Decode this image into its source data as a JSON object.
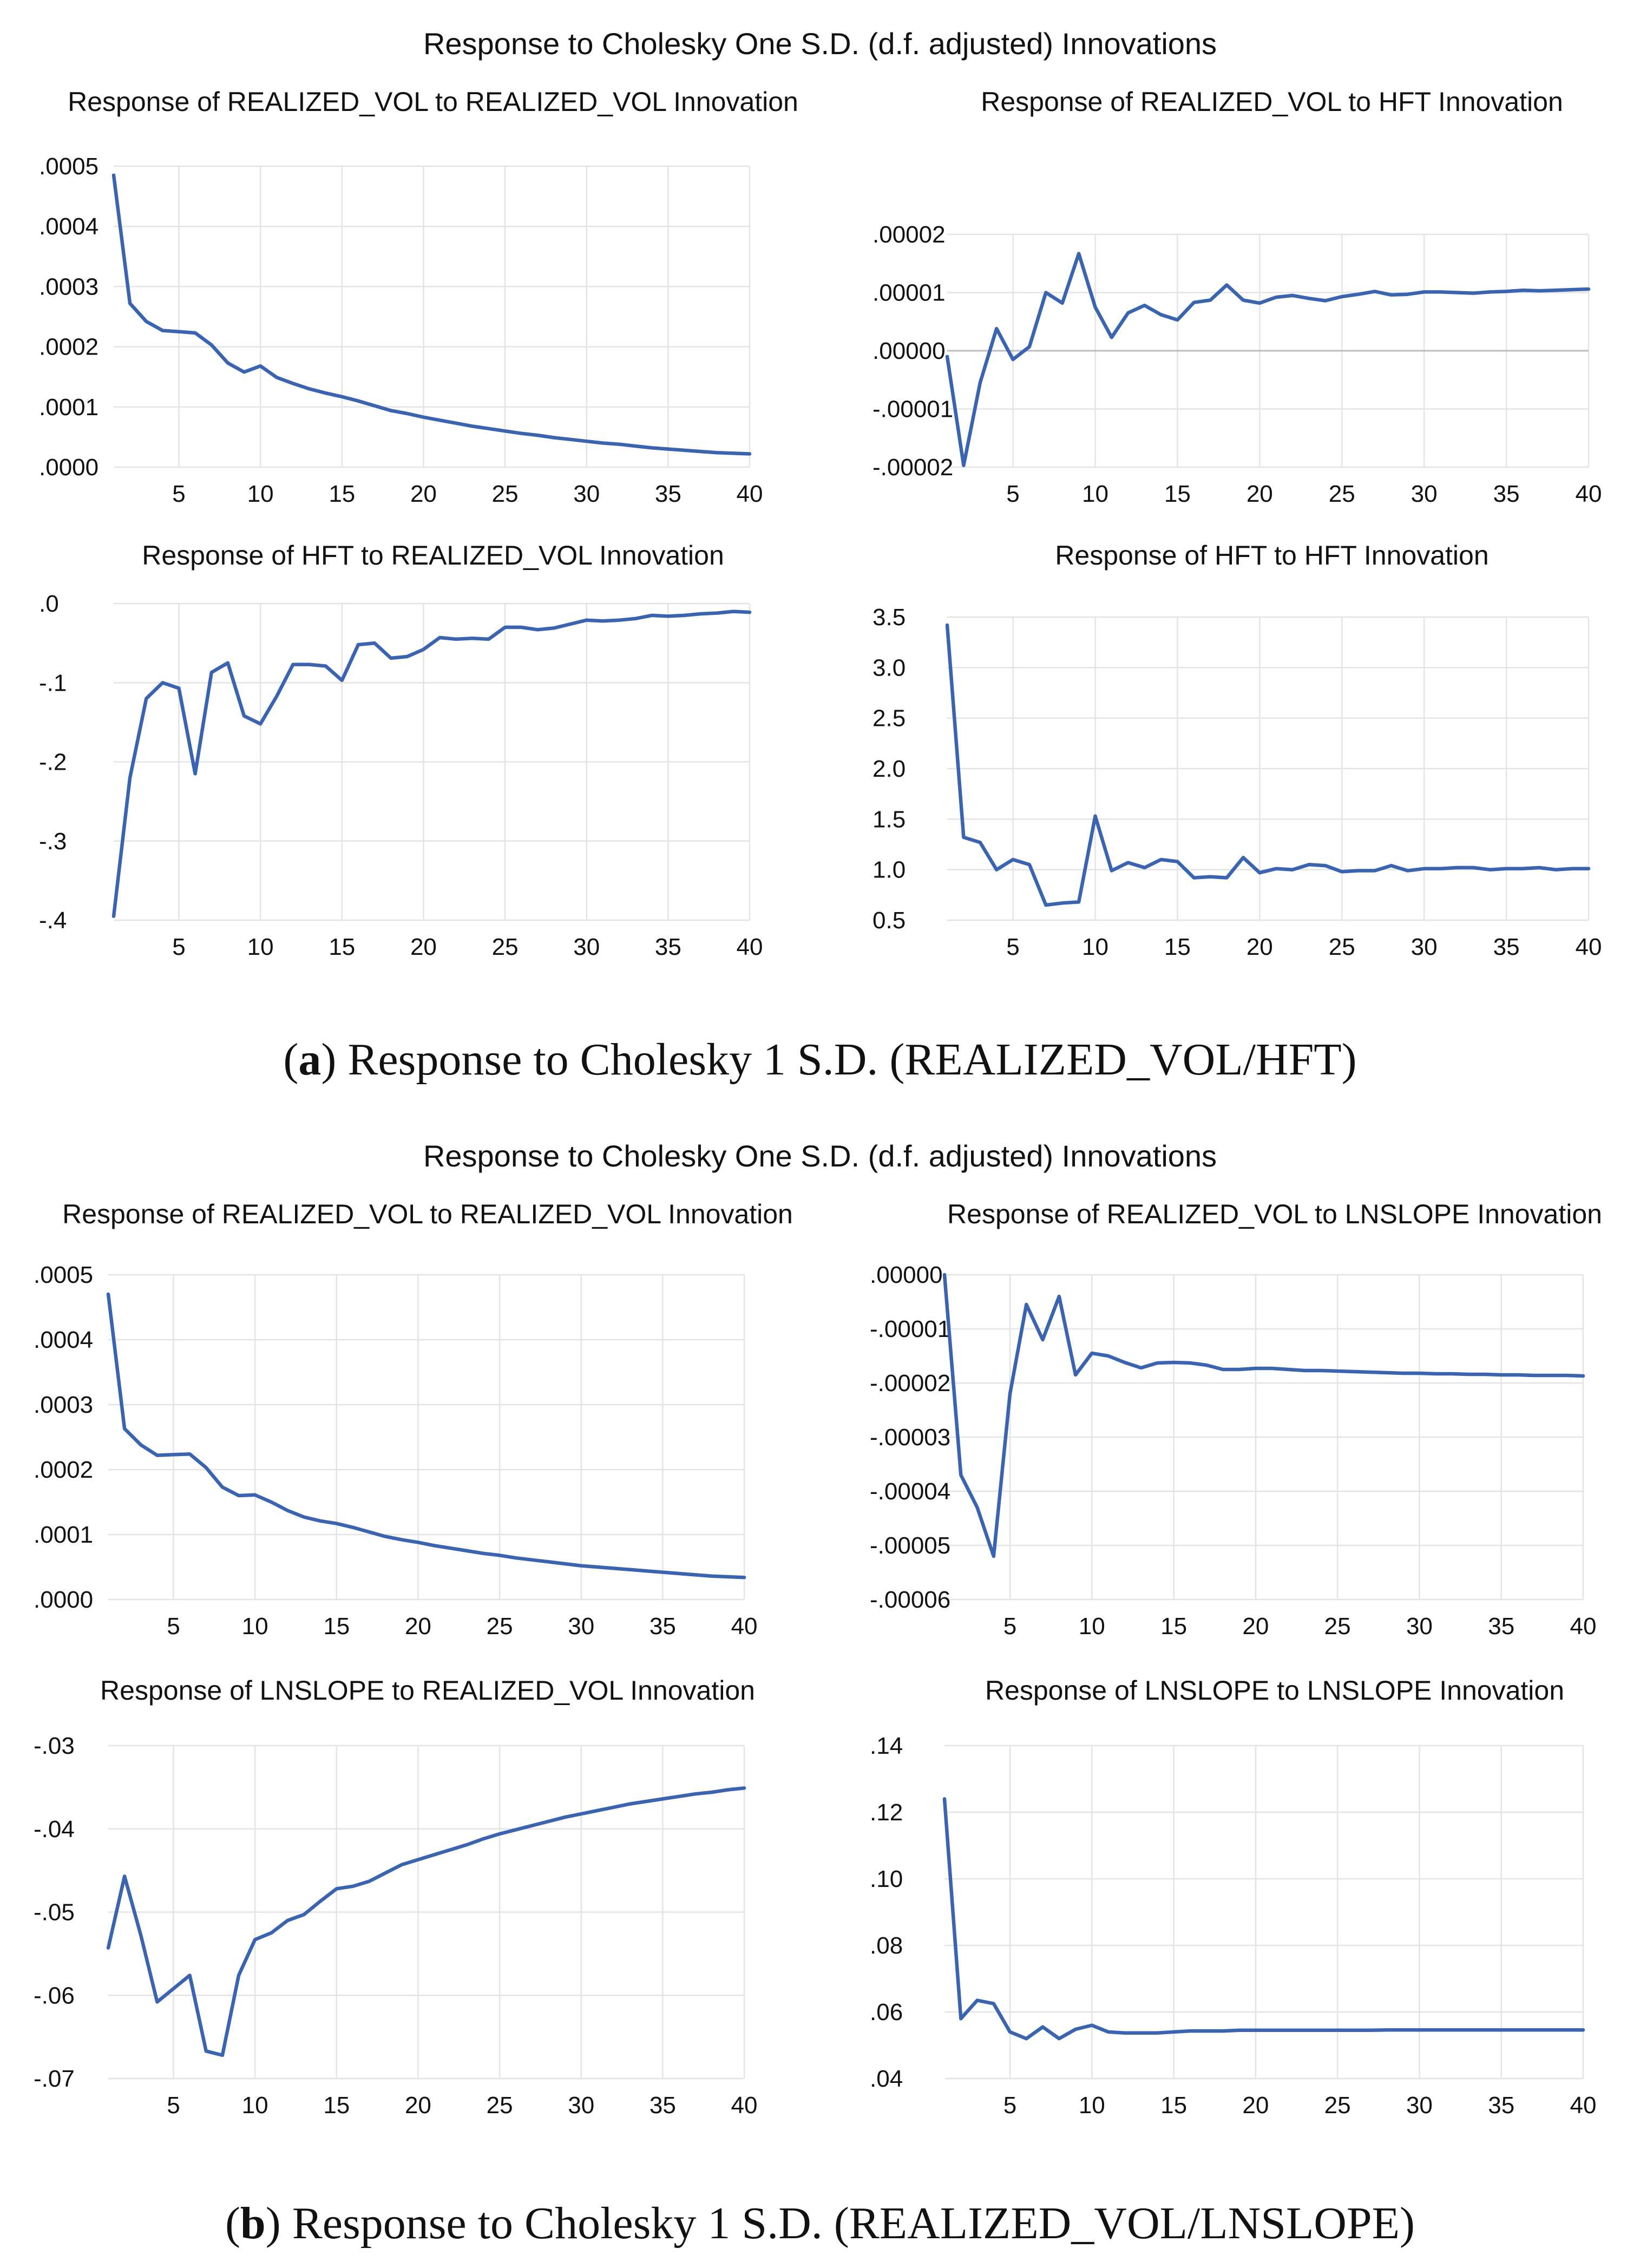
{
  "figure": {
    "series_color": "#3a63b0",
    "groups": [
      {
        "id": "a",
        "suptitle": "Response to Cholesky One S.D. (d.f. adjusted) Innovations",
        "caption_label": "a",
        "caption_text": "Response to Cholesky 1 S.D. (REALIZED_VOL/HFT)"
      },
      {
        "id": "b",
        "suptitle": "Response to Cholesky One S.D. (d.f. adjusted) Innovations",
        "caption_label": "b",
        "caption_text": "Response to Cholesky 1 S.D. (REALIZED_VOL/LNSLOPE)"
      }
    ]
  },
  "chart_data": [
    {
      "type": "line",
      "panel": "a1",
      "title": "Response of REALIZED_VOL to REALIZED_VOL Innovation",
      "x": [
        1,
        2,
        3,
        4,
        5,
        6,
        7,
        8,
        9,
        10,
        11,
        12,
        13,
        14,
        15,
        16,
        17,
        18,
        19,
        20,
        21,
        22,
        23,
        24,
        25,
        26,
        27,
        28,
        29,
        30,
        31,
        32,
        33,
        34,
        35,
        36,
        37,
        38,
        39,
        40
      ],
      "values": [
        0.000485,
        0.000272,
        0.000242,
        0.000227,
        0.000225,
        0.000223,
        0.000203,
        0.000173,
        0.000158,
        0.000168,
        0.000149,
        0.000139,
        0.00013,
        0.000123,
        0.000117,
        0.00011,
        0.000102,
        9.4e-05,
        8.9e-05,
        8.3e-05,
        7.8e-05,
        7.3e-05,
        6.8e-05,
        6.4e-05,
        6e-05,
        5.6e-05,
        5.3e-05,
        4.9e-05,
        4.6e-05,
        4.3e-05,
        4e-05,
        3.8e-05,
        3.5e-05,
        3.2e-05,
        3e-05,
        2.8e-05,
        2.6e-05,
        2.4e-05,
        2.3e-05,
        2.2e-05
      ],
      "xlim": [
        1,
        40
      ],
      "ylim": [
        0,
        0.0005
      ],
      "xticks": [
        5,
        10,
        15,
        20,
        25,
        30,
        35,
        40
      ],
      "xtick_labels": [
        "5",
        "10",
        "15",
        "20",
        "25",
        "30",
        "35",
        "40"
      ],
      "yticks": [
        0,
        0.0001,
        0.0002,
        0.0003,
        0.0004,
        0.0005
      ],
      "ytick_labels": [
        ".0000",
        ".0001",
        ".0002",
        ".0003",
        ".0004",
        ".0005"
      ],
      "zero_line": false,
      "grid": true
    },
    {
      "type": "line",
      "panel": "a2",
      "title": "Response of REALIZED_VOL to HFT Innovation",
      "x": [
        1,
        2,
        3,
        4,
        5,
        6,
        7,
        8,
        9,
        10,
        11,
        12,
        13,
        14,
        15,
        16,
        17,
        18,
        19,
        20,
        21,
        22,
        23,
        24,
        25,
        26,
        27,
        28,
        29,
        30,
        31,
        32,
        33,
        34,
        35,
        36,
        37,
        38,
        39,
        40
      ],
      "values": [
        -1e-06,
        -1.97e-05,
        -5.5e-06,
        3.8e-06,
        -1.5e-06,
        7e-07,
        1e-05,
        8.2e-06,
        1.67e-05,
        7.5e-06,
        2.3e-06,
        6.5e-06,
        7.8e-06,
        6.2e-06,
        5.3e-06,
        8.3e-06,
        8.7e-06,
        1.13e-05,
        8.7e-06,
        8.2e-06,
        9.2e-06,
        9.5e-06,
        9e-06,
        8.6e-06,
        9.3e-06,
        9.7e-06,
        1.02e-05,
        9.6e-06,
        9.7e-06,
        1.01e-05,
        1.01e-05,
        1e-05,
        9.9e-06,
        1.01e-05,
        1.02e-05,
        1.04e-05,
        1.03e-05,
        1.04e-05,
        1.05e-05,
        1.06e-05
      ],
      "xlim": [
        1,
        40
      ],
      "ylim": [
        -2e-05,
        2e-05
      ],
      "xticks": [
        5,
        10,
        15,
        20,
        25,
        30,
        35,
        40
      ],
      "xtick_labels": [
        "5",
        "10",
        "15",
        "20",
        "25",
        "30",
        "35",
        "40"
      ],
      "yticks": [
        -2e-05,
        -1e-05,
        0,
        1e-05,
        2e-05
      ],
      "ytick_labels": [
        "-.00002",
        "-.00001",
        ".00000",
        ".00001",
        ".00002"
      ],
      "zero_line": true,
      "grid": true
    },
    {
      "type": "line",
      "panel": "a3",
      "title": "Response of HFT to REALIZED_VOL Innovation",
      "x": [
        1,
        2,
        3,
        4,
        5,
        6,
        7,
        8,
        9,
        10,
        11,
        12,
        13,
        14,
        15,
        16,
        17,
        18,
        19,
        20,
        21,
        22,
        23,
        24,
        25,
        26,
        27,
        28,
        29,
        30,
        31,
        32,
        33,
        34,
        35,
        36,
        37,
        38,
        39,
        40
      ],
      "values": [
        -0.395,
        -0.22,
        -0.12,
        -0.1,
        -0.107,
        -0.215,
        -0.087,
        -0.075,
        -0.142,
        -0.152,
        -0.117,
        -0.077,
        -0.077,
        -0.079,
        -0.097,
        -0.052,
        -0.05,
        -0.069,
        -0.067,
        -0.058,
        -0.043,
        -0.045,
        -0.044,
        -0.045,
        -0.03,
        -0.03,
        -0.033,
        -0.031,
        -0.026,
        -0.021,
        -0.022,
        -0.021,
        -0.019,
        -0.015,
        -0.016,
        -0.015,
        -0.013,
        -0.012,
        -0.01,
        -0.011
      ],
      "xlim": [
        1,
        40
      ],
      "ylim": [
        -0.4,
        0
      ],
      "xticks": [
        5,
        10,
        15,
        20,
        25,
        30,
        35,
        40
      ],
      "xtick_labels": [
        "5",
        "10",
        "15",
        "20",
        "25",
        "30",
        "35",
        "40"
      ],
      "yticks": [
        -0.4,
        -0.3,
        -0.2,
        -0.1,
        0
      ],
      "ytick_labels": [
        "-.4",
        "-.3",
        "-.2",
        "-.1",
        ".0"
      ],
      "zero_line": false,
      "grid": true
    },
    {
      "type": "line",
      "panel": "a4",
      "title": "Response of HFT to HFT Innovation",
      "x": [
        1,
        2,
        3,
        4,
        5,
        6,
        7,
        8,
        9,
        10,
        11,
        12,
        13,
        14,
        15,
        16,
        17,
        18,
        19,
        20,
        21,
        22,
        23,
        24,
        25,
        26,
        27,
        28,
        29,
        30,
        31,
        32,
        33,
        34,
        35,
        36,
        37,
        38,
        39,
        40
      ],
      "values": [
        3.42,
        1.32,
        1.27,
        1.0,
        1.1,
        1.05,
        0.65,
        0.67,
        0.68,
        1.53,
        0.99,
        1.07,
        1.02,
        1.1,
        1.08,
        0.92,
        0.93,
        0.92,
        1.12,
        0.97,
        1.01,
        1.0,
        1.05,
        1.04,
        0.98,
        0.99,
        0.99,
        1.04,
        0.99,
        1.01,
        1.01,
        1.02,
        1.02,
        1.0,
        1.01,
        1.01,
        1.02,
        1.0,
        1.01,
        1.01
      ],
      "xlim": [
        1,
        40
      ],
      "ylim": [
        0.5,
        3.5
      ],
      "xticks": [
        5,
        10,
        15,
        20,
        25,
        30,
        35,
        40
      ],
      "xtick_labels": [
        "5",
        "10",
        "15",
        "20",
        "25",
        "30",
        "35",
        "40"
      ],
      "yticks": [
        0.5,
        1.0,
        1.5,
        2.0,
        2.5,
        3.0,
        3.5
      ],
      "ytick_labels": [
        "0.5",
        "1.0",
        "1.5",
        "2.0",
        "2.5",
        "3.0",
        "3.5"
      ],
      "zero_line": false,
      "grid": true
    },
    {
      "type": "line",
      "panel": "b1",
      "title": "Response of REALIZED_VOL to REALIZED_VOL Innovation",
      "x": [
        1,
        2,
        3,
        4,
        5,
        6,
        7,
        8,
        9,
        10,
        11,
        12,
        13,
        14,
        15,
        16,
        17,
        18,
        19,
        20,
        21,
        22,
        23,
        24,
        25,
        26,
        27,
        28,
        29,
        30,
        31,
        32,
        33,
        34,
        35,
        36,
        37,
        38,
        39,
        40
      ],
      "values": [
        0.00047,
        0.000263,
        0.000238,
        0.000222,
        0.000223,
        0.000224,
        0.000203,
        0.000173,
        0.00016,
        0.000161,
        0.00015,
        0.000137,
        0.000127,
        0.000121,
        0.000117,
        0.000111,
        0.000104,
        9.7e-05,
        9.2e-05,
        8.8e-05,
        8.3e-05,
        7.9e-05,
        7.5e-05,
        7.1e-05,
        6.8e-05,
        6.4e-05,
        6.1e-05,
        5.8e-05,
        5.5e-05,
        5.2e-05,
        5e-05,
        4.8e-05,
        4.6e-05,
        4.4e-05,
        4.2e-05,
        4e-05,
        3.8e-05,
        3.6e-05,
        3.5e-05,
        3.4e-05
      ],
      "xlim": [
        1,
        40
      ],
      "ylim": [
        0,
        0.0005
      ],
      "xticks": [
        5,
        10,
        15,
        20,
        25,
        30,
        35,
        40
      ],
      "xtick_labels": [
        "5",
        "10",
        "15",
        "20",
        "25",
        "30",
        "35",
        "40"
      ],
      "yticks": [
        0,
        0.0001,
        0.0002,
        0.0003,
        0.0004,
        0.0005
      ],
      "ytick_labels": [
        ".0000",
        ".0001",
        ".0002",
        ".0003",
        ".0004",
        ".0005"
      ],
      "zero_line": false,
      "grid": true
    },
    {
      "type": "line",
      "panel": "b2",
      "title": "Response of REALIZED_VOL to LNSLOPE Innovation",
      "x": [
        1,
        2,
        3,
        4,
        5,
        6,
        7,
        8,
        9,
        10,
        11,
        12,
        13,
        14,
        15,
        16,
        17,
        18,
        19,
        20,
        21,
        22,
        23,
        24,
        25,
        26,
        27,
        28,
        29,
        30,
        31,
        32,
        33,
        34,
        35,
        36,
        37,
        38,
        39,
        40
      ],
      "values": [
        0.0,
        -3.7e-05,
        -4.3e-05,
        -5.2e-05,
        -2.2e-05,
        -5.5e-06,
        -1.2e-05,
        -4e-06,
        -1.85e-05,
        -1.45e-05,
        -1.5e-05,
        -1.62e-05,
        -1.72e-05,
        -1.63e-05,
        -1.62e-05,
        -1.63e-05,
        -1.67e-05,
        -1.75e-05,
        -1.75e-05,
        -1.73e-05,
        -1.73e-05,
        -1.75e-05,
        -1.77e-05,
        -1.77e-05,
        -1.78e-05,
        -1.79e-05,
        -1.8e-05,
        -1.81e-05,
        -1.82e-05,
        -1.82e-05,
        -1.83e-05,
        -1.83e-05,
        -1.84e-05,
        -1.84e-05,
        -1.85e-05,
        -1.85e-05,
        -1.86e-05,
        -1.86e-05,
        -1.86e-05,
        -1.87e-05
      ],
      "xlim": [
        1,
        40
      ],
      "ylim": [
        -6e-05,
        0
      ],
      "xticks": [
        5,
        10,
        15,
        20,
        25,
        30,
        35,
        40
      ],
      "xtick_labels": [
        "5",
        "10",
        "15",
        "20",
        "25",
        "30",
        "35",
        "40"
      ],
      "yticks": [
        -6e-05,
        -5e-05,
        -4e-05,
        -3e-05,
        -2e-05,
        -1e-05,
        0
      ],
      "ytick_labels": [
        "-.00006",
        "-.00005",
        "-.00004",
        "-.00003",
        "-.00002",
        "-.00001",
        ".00000"
      ],
      "zero_line": false,
      "grid": true
    },
    {
      "type": "line",
      "panel": "b3",
      "title": "Response of LNSLOPE to REALIZED_VOL Innovation",
      "x": [
        1,
        2,
        3,
        4,
        5,
        6,
        7,
        8,
        9,
        10,
        11,
        12,
        13,
        14,
        15,
        16,
        17,
        18,
        19,
        20,
        21,
        22,
        23,
        24,
        25,
        26,
        27,
        28,
        29,
        30,
        31,
        32,
        33,
        34,
        35,
        36,
        37,
        38,
        39,
        40
      ],
      "values": [
        -0.0543,
        -0.0457,
        -0.0528,
        -0.0608,
        -0.0592,
        -0.0576,
        -0.0667,
        -0.0672,
        -0.0576,
        -0.0533,
        -0.0525,
        -0.051,
        -0.0503,
        -0.0487,
        -0.0472,
        -0.0469,
        -0.0463,
        -0.0453,
        -0.0443,
        -0.0437,
        -0.0431,
        -0.0425,
        -0.0419,
        -0.0412,
        -0.0406,
        -0.0401,
        -0.0396,
        -0.0391,
        -0.0386,
        -0.0382,
        -0.0378,
        -0.0374,
        -0.037,
        -0.0367,
        -0.0364,
        -0.0361,
        -0.0358,
        -0.0356,
        -0.0353,
        -0.0351
      ],
      "xlim": [
        1,
        40
      ],
      "ylim": [
        -0.07,
        -0.03
      ],
      "xticks": [
        5,
        10,
        15,
        20,
        25,
        30,
        35,
        40
      ],
      "xtick_labels": [
        "5",
        "10",
        "15",
        "20",
        "25",
        "30",
        "35",
        "40"
      ],
      "yticks": [
        -0.07,
        -0.06,
        -0.05,
        -0.04,
        -0.03
      ],
      "ytick_labels": [
        "-.07",
        "-.06",
        "-.05",
        "-.04",
        "-.03"
      ],
      "zero_line": false,
      "grid": true
    },
    {
      "type": "line",
      "panel": "b4",
      "title": "Response of LNSLOPE to LNSLOPE Innovation",
      "x": [
        1,
        2,
        3,
        4,
        5,
        6,
        7,
        8,
        9,
        10,
        11,
        12,
        13,
        14,
        15,
        16,
        17,
        18,
        19,
        20,
        21,
        22,
        23,
        24,
        25,
        26,
        27,
        28,
        29,
        30,
        31,
        32,
        33,
        34,
        35,
        36,
        37,
        38,
        39,
        40
      ],
      "values": [
        0.124,
        0.058,
        0.0635,
        0.0625,
        0.054,
        0.052,
        0.0555,
        0.052,
        0.0548,
        0.056,
        0.054,
        0.0537,
        0.0537,
        0.0537,
        0.054,
        0.0543,
        0.0543,
        0.0543,
        0.0545,
        0.0545,
        0.0545,
        0.0545,
        0.0545,
        0.0545,
        0.0545,
        0.0545,
        0.0545,
        0.0546,
        0.0546,
        0.0546,
        0.0546,
        0.0546,
        0.0546,
        0.0546,
        0.0546,
        0.0546,
        0.0546,
        0.0546,
        0.0546,
        0.0546
      ],
      "xlim": [
        1,
        40
      ],
      "ylim": [
        0.04,
        0.14
      ],
      "xticks": [
        5,
        10,
        15,
        20,
        25,
        30,
        35,
        40
      ],
      "xtick_labels": [
        "5",
        "10",
        "15",
        "20",
        "25",
        "30",
        "35",
        "40"
      ],
      "yticks": [
        0.04,
        0.06,
        0.08,
        0.1,
        0.12,
        0.14
      ],
      "ytick_labels": [
        ".04",
        ".06",
        ".08",
        ".10",
        ".12",
        ".14"
      ],
      "zero_line": false,
      "grid": true
    }
  ]
}
